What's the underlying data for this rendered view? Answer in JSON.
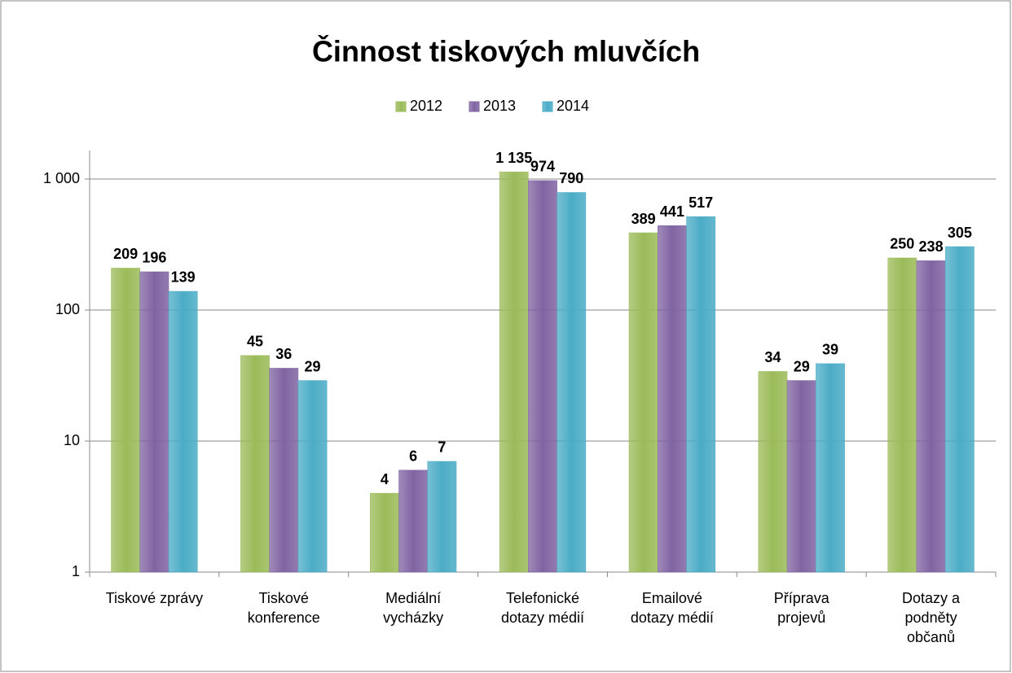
{
  "chart_data": {
    "type": "bar",
    "title": "Činnost tiskových mluvčích",
    "categories": [
      "Tiskové zprávy",
      "Tiskové\nkonference",
      "Mediální\nvycházky",
      "Telefonické\ndotazy médií",
      "Emailové\ndotazy médií",
      "Příprava\nprojevů",
      "Dotazy a\npodněty\nobčanů"
    ],
    "series": [
      {
        "name": "2012",
        "color": "#9bbb59",
        "values": [
          209,
          45,
          4,
          1135,
          389,
          34,
          250
        ],
        "value_labels": [
          "209",
          "45",
          "4",
          "1 135",
          "389",
          "34",
          "250"
        ]
      },
      {
        "name": "2013",
        "color": "#8064a2",
        "values": [
          196,
          36,
          6,
          974,
          441,
          29,
          238
        ]
      },
      {
        "name": "2014",
        "color": "#4bacc6",
        "values": [
          139,
          29,
          7,
          790,
          517,
          39,
          305
        ]
      }
    ],
    "log_scale": true,
    "ylim": [
      1,
      1650
    ],
    "yticks": [
      1,
      10,
      100,
      {
        "value": 1000,
        "label": "1 000"
      }
    ],
    "grid": true,
    "legend": "top"
  }
}
